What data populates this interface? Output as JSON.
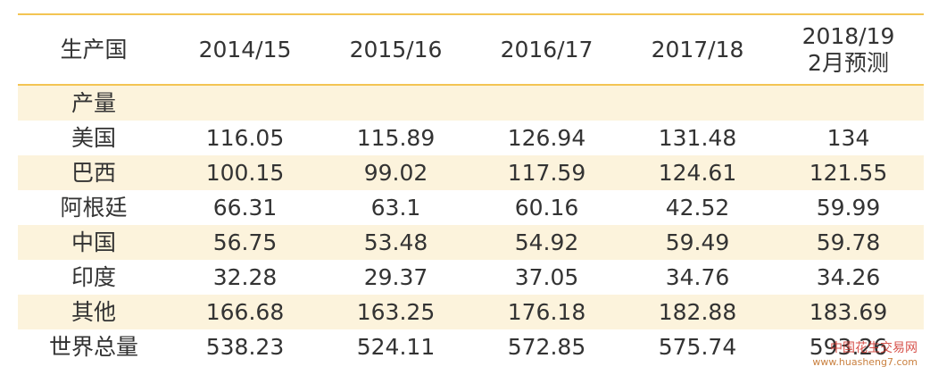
{
  "table": {
    "header": [
      "生产国",
      "2014/15",
      "2015/16",
      "2016/17",
      "2017/18",
      [
        "2018/19",
        "2月预测"
      ]
    ],
    "section": "产量",
    "rows": [
      [
        "美国",
        "116.05",
        "115.89",
        "126.94",
        "131.48",
        "134"
      ],
      [
        "巴西",
        "100.15",
        "99.02",
        "117.59",
        "124.61",
        "121.55"
      ],
      [
        "阿根廷",
        "66.31",
        "63.1",
        "60.16",
        "42.52",
        "59.99"
      ],
      [
        "中国",
        "56.75",
        "53.48",
        "54.92",
        "59.49",
        "59.78"
      ],
      [
        "印度",
        "32.28",
        "29.37",
        "37.05",
        "34.76",
        "34.26"
      ],
      [
        "其他",
        "166.68",
        "163.25",
        "176.18",
        "182.88",
        "183.69"
      ],
      [
        "世界总量",
        "538.23",
        "524.11",
        "572.85",
        "575.74",
        "593.26"
      ]
    ]
  },
  "watermark": {
    "name": "中国花生交易网",
    "url": "www.huasheng7.com"
  }
}
